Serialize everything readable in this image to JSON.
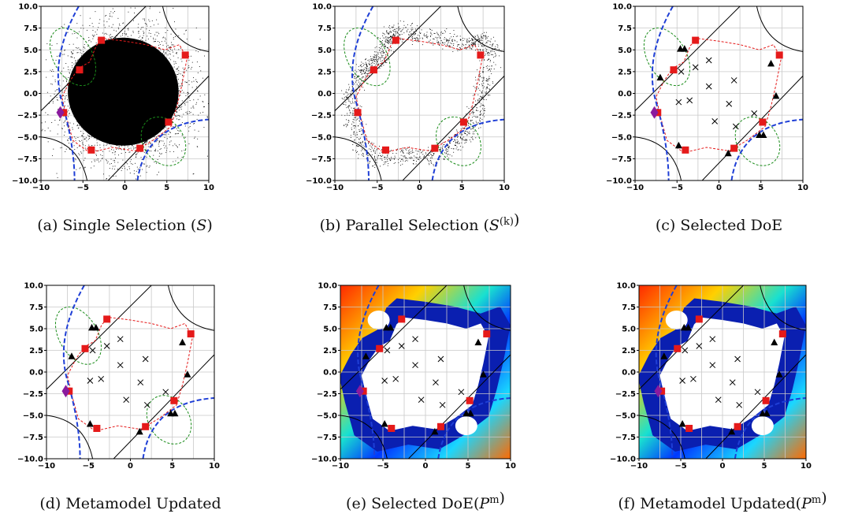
{
  "chart_data": [
    {
      "type": "scatter",
      "label": "(a)",
      "caption_prefix": "Single Selection (",
      "caption_sym": "S",
      "caption_sup": "",
      "caption_suffix": ")",
      "xlim": [
        -10,
        10
      ],
      "ylim": [
        -10,
        10
      ],
      "mode": "cloud"
    },
    {
      "type": "scatter",
      "label": "(b)",
      "caption_prefix": "Parallel Selection (",
      "caption_sym": "S",
      "caption_sup": "(k)",
      "caption_suffix": ")",
      "xlim": [
        -10,
        10
      ],
      "ylim": [
        -10,
        10
      ],
      "mode": "ring"
    },
    {
      "type": "scatter",
      "label": "(c)",
      "caption_prefix": "Selected DoE",
      "caption_sym": "",
      "caption_sup": "",
      "caption_suffix": "",
      "xlim": [
        -10,
        10
      ],
      "ylim": [
        -10,
        10
      ],
      "mode": "doe"
    },
    {
      "type": "scatter",
      "label": "(d)",
      "caption_prefix": "Metamodel Updated",
      "caption_sym": "",
      "caption_sup": "",
      "caption_suffix": "",
      "xlim": [
        -10,
        10
      ],
      "ylim": [
        -10,
        10
      ],
      "mode": "updated"
    },
    {
      "type": "heatmap",
      "label": "(e)",
      "caption_prefix": "Selected DoE(",
      "caption_sym": "P",
      "caption_sup": "m",
      "caption_suffix": ")",
      "xlim": [
        -10,
        10
      ],
      "ylim": [
        -10,
        10
      ],
      "mode": "heat"
    },
    {
      "type": "heatmap",
      "label": "(f)",
      "caption_prefix": "Metamodel Updated(",
      "caption_sym": "P",
      "caption_sup": "m",
      "caption_suffix": ")",
      "xlim": [
        -10,
        10
      ],
      "ylim": [
        -10,
        10
      ],
      "mode": "heat2"
    }
  ],
  "ticks": [
    "−10",
    "−5",
    "0",
    "5",
    "10"
  ],
  "yticks": [
    "10.0",
    "7.5",
    "5.0",
    "2.5",
    "0.0",
    "−2.5",
    "−5.0",
    "−7.5",
    "−10.0"
  ],
  "doe_points": [
    [
      -1.2,
      3.8
    ],
    [
      -2.8,
      3.0
    ],
    [
      -4.5,
      2.5
    ],
    [
      -3.5,
      -0.8
    ],
    [
      1.8,
      1.5
    ],
    [
      -1.2,
      0.8
    ],
    [
      1.2,
      -1.2
    ],
    [
      -4.8,
      -1.0
    ],
    [
      -0.5,
      -3.2
    ],
    [
      2.0,
      -3.8
    ],
    [
      4.2,
      -2.3
    ]
  ],
  "triangles": [
    [
      -4.6,
      5.1
    ],
    [
      -4.1,
      5.1
    ],
    [
      -7.0,
      1.8
    ],
    [
      6.2,
      3.4
    ],
    [
      6.8,
      -0.3
    ],
    [
      4.8,
      -4.8
    ],
    [
      5.3,
      -4.8
    ],
    [
      1.1,
      -6.9
    ],
    [
      -4.8,
      -6.0
    ]
  ],
  "squares": [
    [
      -2.8,
      6.1
    ],
    [
      7.2,
      4.4
    ],
    [
      -5.4,
      2.7
    ],
    [
      -7.3,
      -2.2
    ],
    [
      5.2,
      -3.3
    ],
    [
      -4.0,
      -6.5
    ],
    [
      1.8,
      -6.3
    ]
  ],
  "diamond": [
    -7.7,
    -2.2
  ],
  "colors": {
    "red": "#e51a1a",
    "green": "#1a8c1a",
    "blue": "#1f3fd6",
    "purple": "#8a1a9e"
  }
}
